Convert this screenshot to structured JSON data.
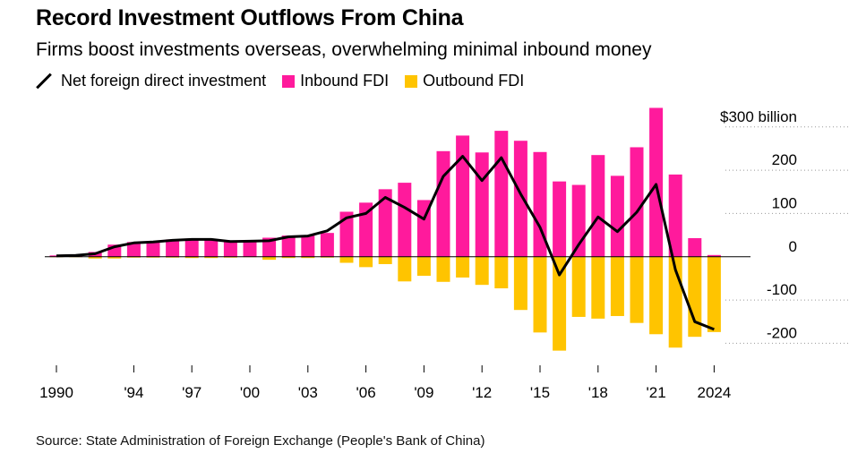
{
  "title": "Record Investment Outflows From China",
  "subtitle": "Firms boost investments overseas, overwhelming minimal inbound money",
  "legend": {
    "net": "Net foreign direct investment",
    "inbound": "Inbound FDI",
    "outbound": "Outbound FDI"
  },
  "source": "Source: State Administration of Foreign Exchange (People's Bank of China)",
  "colors": {
    "inbound": "#ff1a9c",
    "outbound": "#ffc400",
    "net": "#000000"
  },
  "chart_data": {
    "type": "bar",
    "title": "Record Investment Outflows From China",
    "xlabel": "",
    "ylabel": "",
    "ylim": [
      -255,
      345
    ],
    "y_ticks": [
      {
        "value": 300,
        "label": "$300 billion"
      },
      {
        "value": 200,
        "label": "200"
      },
      {
        "value": 100,
        "label": "100"
      },
      {
        "value": 0,
        "label": "0"
      },
      {
        "value": -100,
        "label": "-100"
      },
      {
        "value": -200,
        "label": "-200"
      }
    ],
    "x_ticks": [
      {
        "year": 1990,
        "label": "1990"
      },
      {
        "year": 1994,
        "label": "'94"
      },
      {
        "year": 1997,
        "label": "'97"
      },
      {
        "year": 2000,
        "label": "'00"
      },
      {
        "year": 2003,
        "label": "'03"
      },
      {
        "year": 2006,
        "label": "'06"
      },
      {
        "year": 2009,
        "label": "'09"
      },
      {
        "year": 2012,
        "label": "'12"
      },
      {
        "year": 2015,
        "label": "'15"
      },
      {
        "year": 2018,
        "label": "'18"
      },
      {
        "year": 2021,
        "label": "'21"
      },
      {
        "year": 2024,
        "label": "2024"
      }
    ],
    "years": [
      1990,
      1991,
      1992,
      1993,
      1994,
      1995,
      1996,
      1997,
      1998,
      1999,
      2000,
      2001,
      2002,
      2003,
      2004,
      2005,
      2006,
      2007,
      2008,
      2009,
      2010,
      2011,
      2012,
      2013,
      2014,
      2015,
      2016,
      2017,
      2018,
      2019,
      2020,
      2021,
      2022,
      2023,
      2024
    ],
    "series": [
      {
        "name": "Inbound FDI",
        "kind": "bar",
        "values": [
          3,
          4,
          11,
          28,
          34,
          36,
          40,
          42,
          41,
          37,
          38,
          44,
          49,
          50,
          55,
          104,
          125,
          156,
          171,
          131,
          244,
          280,
          241,
          291,
          268,
          242,
          174,
          166,
          235,
          187,
          253,
          344,
          190,
          43,
          4
        ]
      },
      {
        "name": "Outbound FDI",
        "kind": "bar",
        "values": [
          -1,
          -1,
          -4,
          -4,
          -2,
          -2,
          -2,
          -3,
          -3,
          -2,
          -1,
          -7,
          -3,
          -3,
          -2,
          -14,
          -24,
          -17,
          -57,
          -44,
          -58,
          -48,
          -65,
          -73,
          -123,
          -175,
          -217,
          -139,
          -143,
          -137,
          -153,
          -179,
          -210,
          -185,
          -174
        ]
      },
      {
        "name": "Net foreign direct investment",
        "kind": "line",
        "values": [
          2,
          3,
          7,
          23,
          32,
          34,
          38,
          40,
          40,
          35,
          36,
          37,
          46,
          48,
          60,
          90,
          100,
          137,
          114,
          87,
          186,
          232,
          176,
          229,
          145,
          68,
          -42,
          28,
          92,
          58,
          103,
          167,
          -30,
          -150,
          -168
        ]
      }
    ]
  }
}
